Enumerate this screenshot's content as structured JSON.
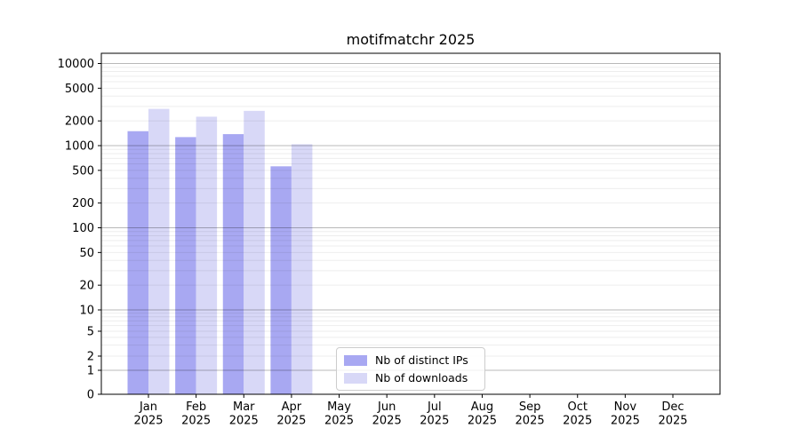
{
  "chart_data": {
    "type": "bar",
    "title": "motifmatchr 2025",
    "scale": "symlog",
    "grid": true,
    "legend_position": "lower center",
    "categories": [
      "Jan 2025",
      "Feb 2025",
      "Mar 2025",
      "Apr 2025",
      "May 2025",
      "Jun 2025",
      "Jul 2025",
      "Aug 2025",
      "Sep 2025",
      "Oct 2025",
      "Nov 2025",
      "Dec 2025"
    ],
    "series": [
      {
        "name": "Nb of distinct IPs",
        "color": "#a8a8f2",
        "values": [
          1500,
          1270,
          1380,
          560,
          0,
          0,
          0,
          0,
          0,
          0,
          0,
          0
        ]
      },
      {
        "name": "Nb of downloads",
        "color": "#d8d8f7",
        "values": [
          2800,
          2250,
          2650,
          1040,
          0,
          0,
          0,
          0,
          0,
          0,
          0,
          0
        ]
      }
    ],
    "y_ticks": [
      10000,
      5000,
      2000,
      1000,
      500,
      200,
      100,
      50,
      20,
      10,
      5,
      2,
      1,
      0
    ],
    "ylim": [
      0,
      10000
    ],
    "xlabel": "",
    "ylabel": "",
    "colors": {
      "major_gridline": "rgba(0,0,0,0.28)",
      "minor_gridline": "rgba(0,0,0,0.07)",
      "spine": "#000000",
      "tick_text": "#000000",
      "legend_border": "#cccccc"
    }
  }
}
